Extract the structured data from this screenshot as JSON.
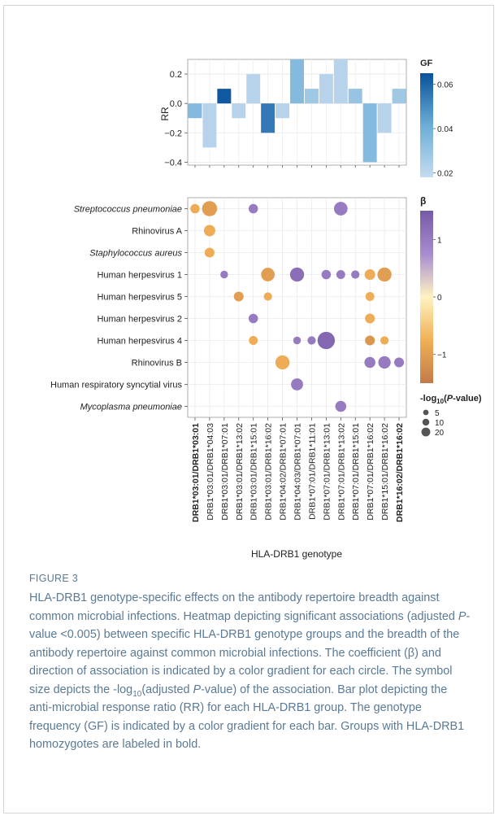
{
  "figure": {
    "label": "FIGURE 3",
    "caption_parts": [
      {
        "t": "HLA-DRB1 genotype-specific effects on the antibody repertoire breadth against common microbial infections. Heatmap depicting significant associations (adjusted "
      },
      {
        "t": "P",
        "i": true
      },
      {
        "t": "-value <0.005) between specific HLA-DRB1 genotype groups and the breadth of the antibody repertoire against common microbial infections. The coefficient (β) and direction of association is indicated by a color gradient for each circle. The symbol size depicts the -log"
      },
      {
        "t": "10",
        "sub": true
      },
      {
        "t": "(adjusted "
      },
      {
        "t": "P",
        "i": true
      },
      {
        "t": "-value) of the association. Bar plot depicting the anti-microbial response ratio (RR) for each HLA-DRB1 group. The genotype frequency (GF) is indicated by a color gradient for each bar. Groups with HLA-DRB1 homozygotes are labeled in bold."
      }
    ]
  },
  "chart_data": [
    {
      "type": "bar",
      "ylabel": "RR",
      "ylim": [
        -0.42,
        0.3
      ],
      "yticks": [
        "0.2",
        "0.0",
        "−0.2",
        "−0.4"
      ],
      "ytick_values": [
        0.2,
        0.0,
        -0.2,
        -0.4
      ],
      "categories": [
        "DRB1*03:01/DRB1*03:01",
        "DRB1*03:01/DRB1*04:03",
        "DRB1*03:01/DRB1*07:01",
        "DRB1*03:01/DRB1*13:02",
        "DRB1*03:01/DRB1*15:01",
        "DRB1*03:01/DRB1*16:02",
        "DRB1*04:02/DRB1*07:01",
        "DRB1*04:03/DRB1*07:01",
        "DRB1*07:01/DRB1*11:01",
        "DRB1*07:01/DRB1*13:01",
        "DRB1*07:01/DRB1*13:02",
        "DRB1*07:01/DRB1*15:01",
        "DRB1*07:01/DRB1*16:02",
        "DRB1*15:01/DRB1*16:02",
        "DRB1*16:02/DRB1*16:02"
      ],
      "values": [
        -0.1,
        -0.3,
        0.1,
        -0.1,
        0.2,
        -0.2,
        -0.1,
        0.3,
        0.1,
        0.2,
        0.3,
        0.1,
        -0.4,
        -0.2,
        0.1
      ],
      "gf": [
        0.035,
        0.022,
        0.063,
        0.022,
        0.022,
        0.055,
        0.022,
        0.035,
        0.028,
        0.022,
        0.022,
        0.03,
        0.035,
        0.022,
        0.028
      ],
      "legend": {
        "title": "GF",
        "ticks": [
          "0.06",
          "0.04",
          "0.02"
        ],
        "tick_values": [
          0.06,
          0.04,
          0.02
        ],
        "range": [
          0.018,
          0.065
        ],
        "colors": [
          "#c6dbef",
          "#6aaed6",
          "#08519c"
        ]
      },
      "bold_categories": [
        "DRB1*03:01/DRB1*03:01",
        "DRB1*16:02/DRB1*16:02"
      ]
    },
    {
      "type": "scatter",
      "xlabel": "HLA-DRB1 genotype",
      "rows": [
        {
          "label": "Streptococcus pneumoniae",
          "italic": true
        },
        {
          "label": "Rhinovirus A",
          "italic": false
        },
        {
          "label": "Staphylococcus aureus",
          "italic": true
        },
        {
          "label": "Human herpesvirus 1",
          "italic": false
        },
        {
          "label": "Human herpesvirus 5",
          "italic": false
        },
        {
          "label": "Human herpesvirus 2",
          "italic": false
        },
        {
          "label": "Human herpesvirus 4",
          "italic": false
        },
        {
          "label": "Rhinovirus B",
          "italic": false
        },
        {
          "label": "Human respiratory syncytial virus",
          "italic": false
        },
        {
          "label": "Mycoplasma pneumoniae",
          "italic": true
        }
      ],
      "points": [
        {
          "row": 0,
          "col": 0,
          "beta": -0.8,
          "logp": 6
        },
        {
          "row": 0,
          "col": 1,
          "beta": -1.0,
          "logp": 24
        },
        {
          "row": 0,
          "col": 4,
          "beta": 1.0,
          "logp": 6
        },
        {
          "row": 0,
          "col": 10,
          "beta": 1.0,
          "logp": 18
        },
        {
          "row": 1,
          "col": 1,
          "beta": -0.8,
          "logp": 11
        },
        {
          "row": 2,
          "col": 1,
          "beta": -0.8,
          "logp": 7
        },
        {
          "row": 3,
          "col": 2,
          "beta": 1.0,
          "logp": 3
        },
        {
          "row": 3,
          "col": 5,
          "beta": -1.0,
          "logp": 18
        },
        {
          "row": 3,
          "col": 7,
          "beta": 1.2,
          "logp": 20
        },
        {
          "row": 3,
          "col": 9,
          "beta": 1.0,
          "logp": 6
        },
        {
          "row": 3,
          "col": 10,
          "beta": 1.0,
          "logp": 5
        },
        {
          "row": 3,
          "col": 11,
          "beta": 1.0,
          "logp": 4
        },
        {
          "row": 3,
          "col": 12,
          "beta": -0.8,
          "logp": 9
        },
        {
          "row": 3,
          "col": 13,
          "beta": -1.0,
          "logp": 20
        },
        {
          "row": 4,
          "col": 3,
          "beta": -1.0,
          "logp": 7
        },
        {
          "row": 4,
          "col": 5,
          "beta": -0.8,
          "logp": 4
        },
        {
          "row": 4,
          "col": 12,
          "beta": -0.8,
          "logp": 5
        },
        {
          "row": 5,
          "col": 4,
          "beta": 1.0,
          "logp": 6
        },
        {
          "row": 5,
          "col": 12,
          "beta": -0.8,
          "logp": 7
        },
        {
          "row": 6,
          "col": 4,
          "beta": -0.8,
          "logp": 5
        },
        {
          "row": 6,
          "col": 7,
          "beta": 1.0,
          "logp": 3
        },
        {
          "row": 6,
          "col": 8,
          "beta": 1.0,
          "logp": 4
        },
        {
          "row": 6,
          "col": 9,
          "beta": 1.3,
          "logp": 34
        },
        {
          "row": 6,
          "col": 12,
          "beta": -1.1,
          "logp": 7
        },
        {
          "row": 6,
          "col": 13,
          "beta": -0.8,
          "logp": 4
        },
        {
          "row": 7,
          "col": 6,
          "beta": -0.8,
          "logp": 20
        },
        {
          "row": 7,
          "col": 12,
          "beta": 1.0,
          "logp": 10
        },
        {
          "row": 7,
          "col": 13,
          "beta": 1.0,
          "logp": 14
        },
        {
          "row": 7,
          "col": 14,
          "beta": 1.0,
          "logp": 7
        },
        {
          "row": 8,
          "col": 7,
          "beta": 1.0,
          "logp": 13
        },
        {
          "row": 9,
          "col": 10,
          "beta": 1.0,
          "logp": 10
        }
      ],
      "color_legend": {
        "title": "β",
        "ticks": [
          "1",
          "0",
          "−1"
        ],
        "tick_values": [
          1,
          0,
          -1
        ],
        "range": [
          -1.5,
          1.5
        ],
        "colors": [
          "#c47a49",
          "#f0b056",
          "#fff3c2",
          "#a78ccf",
          "#765aa5"
        ]
      },
      "size_legend": {
        "title_main": "-log",
        "title_sub": "10",
        "title_rest1": "(",
        "title_italic": "P",
        "title_rest2": "-value)",
        "entries": [
          "5",
          "10",
          "20"
        ],
        "entry_values": [
          5,
          10,
          20
        ]
      }
    }
  ]
}
